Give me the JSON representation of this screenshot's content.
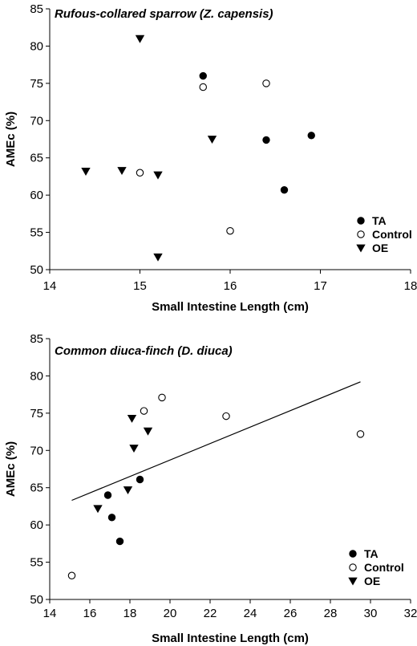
{
  "chart_data": [
    {
      "type": "scatter",
      "title": "Rufous-collared sparrow (Z. capensis)",
      "xlabel": "Small Intestine Length (cm)",
      "ylabel": "AMEc (%)",
      "xlim": [
        14,
        18
      ],
      "ylim": [
        50,
        85
      ],
      "xticks": [
        14,
        15,
        16,
        17,
        18
      ],
      "yticks": [
        50,
        55,
        60,
        65,
        70,
        75,
        80,
        85
      ],
      "grid": false,
      "legend_position": "bottom-right",
      "series": [
        {
          "name": "TA",
          "marker": "filled-circle",
          "points": [
            [
              15.7,
              76.0
            ],
            [
              16.4,
              67.4
            ],
            [
              16.9,
              68.0
            ],
            [
              16.6,
              60.7
            ]
          ]
        },
        {
          "name": "Control",
          "marker": "open-circle",
          "points": [
            [
              15.7,
              74.5
            ],
            [
              16.4,
              75.0
            ],
            [
              15.0,
              63.0
            ],
            [
              16.0,
              55.2
            ]
          ]
        },
        {
          "name": "OE",
          "marker": "filled-triangle-down",
          "points": [
            [
              15.0,
              81.0
            ],
            [
              15.8,
              67.5
            ],
            [
              14.4,
              63.2
            ],
            [
              14.8,
              63.3
            ],
            [
              15.2,
              62.7
            ],
            [
              15.2,
              51.7
            ]
          ]
        }
      ]
    },
    {
      "type": "scatter",
      "title": "Common diuca-finch (D. diuca)",
      "xlabel": "Small Intestine Length (cm)",
      "ylabel": "AMEc (%)",
      "xlim": [
        14,
        32
      ],
      "ylim": [
        50,
        85
      ],
      "xticks": [
        14,
        16,
        18,
        20,
        22,
        24,
        26,
        28,
        30,
        32
      ],
      "yticks": [
        50,
        55,
        60,
        65,
        70,
        75,
        80,
        85
      ],
      "grid": false,
      "legend_position": "bottom-right",
      "series": [
        {
          "name": "TA",
          "marker": "filled-circle",
          "points": [
            [
              16.9,
              64.0
            ],
            [
              17.1,
              61.0
            ],
            [
              17.5,
              57.8
            ],
            [
              18.5,
              66.1
            ]
          ]
        },
        {
          "name": "Control",
          "marker": "open-circle",
          "points": [
            [
              15.1,
              53.2
            ],
            [
              18.7,
              75.3
            ],
            [
              19.6,
              77.1
            ],
            [
              22.8,
              74.6
            ],
            [
              29.5,
              72.2
            ]
          ]
        },
        {
          "name": "OE",
          "marker": "filled-triangle-down",
          "points": [
            [
              16.4,
              62.2
            ],
            [
              17.9,
              64.7
            ],
            [
              18.1,
              74.3
            ],
            [
              18.2,
              70.3
            ],
            [
              18.9,
              72.6
            ]
          ]
        }
      ],
      "trendline": {
        "x": [
          15.1,
          29.5
        ],
        "y": [
          63.3,
          79.2
        ]
      }
    }
  ]
}
